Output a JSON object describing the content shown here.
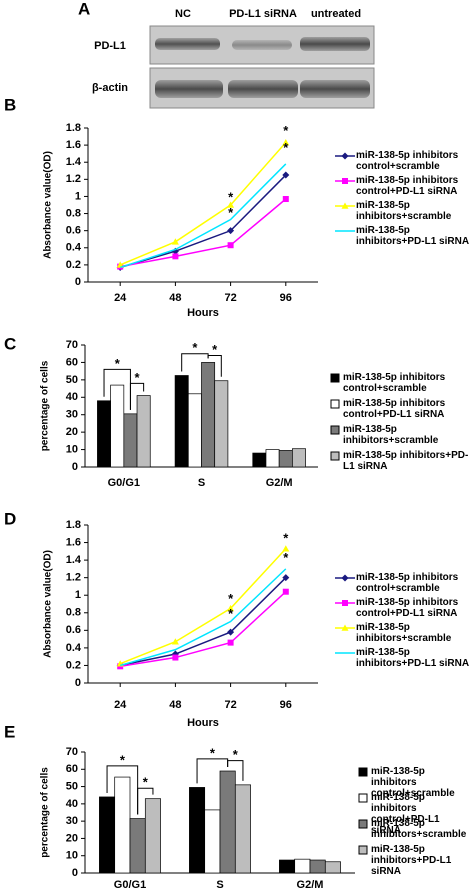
{
  "blot": {
    "panel": "A",
    "lanes": [
      "NC",
      "PD-L1 siRNA",
      "untreated"
    ],
    "rows": [
      "PD-L1",
      "β-actin"
    ]
  },
  "chart_data": [
    {
      "type": "line",
      "panel": "B",
      "xlabel": "Hours",
      "ylabel": "Absorbance value(OD)",
      "x": [
        24,
        48,
        72,
        96
      ],
      "xlim": [
        10,
        110
      ],
      "xticks": [
        24,
        48,
        72,
        96
      ],
      "ylim": [
        0,
        1.8
      ],
      "yticks": [
        0,
        0.2,
        0.4,
        0.6,
        0.8,
        1,
        1.2,
        1.4,
        1.6,
        1.8
      ],
      "series": [
        {
          "name": "miR-138-5p inhibitors control+scramble",
          "color": "#1a1a80",
          "marker": "diamond",
          "values": [
            0.17,
            0.36,
            0.6,
            1.25
          ]
        },
        {
          "name": "miR-138-5p inhibitors control+PD-L1 siRNA",
          "color": "#ff00ff",
          "marker": "square",
          "values": [
            0.18,
            0.3,
            0.43,
            0.97
          ]
        },
        {
          "name": "miR-138-5p inhibitors+scramble",
          "color": "#ffff00",
          "marker": "triangle",
          "values": [
            0.2,
            0.47,
            0.9,
            1.63
          ]
        },
        {
          "name": "miR-138-5p inhibitors+PD-L1 siRNA",
          "color": "#00e5ff",
          "marker": "none",
          "values": [
            0.17,
            0.38,
            0.73,
            1.38
          ]
        }
      ],
      "annotations": [
        {
          "text": "*",
          "x": 96,
          "y": 1.76
        },
        {
          "text": "*",
          "x": 96,
          "y": 1.56
        },
        {
          "text": "*",
          "x": 72,
          "y": 0.98
        },
        {
          "text": "*",
          "x": 72,
          "y": 0.8
        }
      ]
    },
    {
      "type": "bar",
      "panel": "C",
      "ylabel": "percentage of cells",
      "categories": [
        "G0/G1",
        "S",
        "G2/M"
      ],
      "ylim": [
        0,
        70
      ],
      "yticks": [
        0,
        10,
        20,
        30,
        40,
        50,
        60,
        70
      ],
      "series": [
        {
          "name": "miR-138-5p inhibitors control+scramble",
          "color": "#000000",
          "values": [
            38,
            52.5,
            8
          ]
        },
        {
          "name": "miR-138-5p inhibitors control+PD-L1 siRNA",
          "color": "#ffffff",
          "values": [
            47,
            42,
            10
          ]
        },
        {
          "name": "miR-138-5p inhibitors+scramble",
          "color": "#7a7a7a",
          "values": [
            30.5,
            60,
            9.5
          ]
        },
        {
          "name": "miR-138-5p inhibitors+PD-L1 siRNA",
          "color": "#bdbdbd",
          "values": [
            41,
            49.5,
            10.5
          ]
        }
      ],
      "annotations": [
        {
          "text": "*",
          "y": 56,
          "from": [
            0,
            0
          ],
          "to": [
            0,
            2
          ]
        },
        {
          "text": "*",
          "y": 48,
          "from": [
            0,
            2
          ],
          "to": [
            0,
            3
          ]
        },
        {
          "text": "*",
          "y": 65,
          "from": [
            1,
            0
          ],
          "to": [
            1,
            2
          ]
        },
        {
          "text": "*",
          "y": 64,
          "from": [
            1,
            2
          ],
          "to": [
            1,
            3
          ]
        }
      ]
    },
    {
      "type": "line",
      "panel": "D",
      "xlabel": "Hours",
      "ylabel": "Absorbance value(OD)",
      "x": [
        24,
        48,
        72,
        96
      ],
      "xlim": [
        10,
        110
      ],
      "xticks": [
        24,
        48,
        72,
        96
      ],
      "ylim": [
        0,
        1.8
      ],
      "yticks": [
        0,
        0.2,
        0.4,
        0.6,
        0.8,
        1,
        1.2,
        1.4,
        1.6,
        1.8
      ],
      "series": [
        {
          "name": "miR-138-5p inhibitors control+scramble",
          "color": "#1a1a80",
          "marker": "diamond",
          "values": [
            0.2,
            0.33,
            0.58,
            1.2
          ]
        },
        {
          "name": "miR-138-5p inhibitors control+PD-L1 siRNA",
          "color": "#ff00ff",
          "marker": "square",
          "values": [
            0.19,
            0.29,
            0.46,
            1.04
          ]
        },
        {
          "name": "miR-138-5p inhibitors+scramble",
          "color": "#ffff00",
          "marker": "triangle",
          "values": [
            0.22,
            0.47,
            0.85,
            1.53
          ]
        },
        {
          "name": "miR-138-5p inhibitors+PD-L1 siRNA",
          "color": "#00e5ff",
          "marker": "none",
          "values": [
            0.2,
            0.38,
            0.7,
            1.3
          ]
        }
      ],
      "annotations": [
        {
          "text": "*",
          "x": 96,
          "y": 1.64
        },
        {
          "text": "*",
          "x": 96,
          "y": 1.42
        },
        {
          "text": "*",
          "x": 72,
          "y": 0.95
        },
        {
          "text": "*",
          "x": 72,
          "y": 0.78
        }
      ]
    },
    {
      "type": "bar",
      "panel": "E",
      "ylabel": "percentage of cells",
      "categories": [
        "G0/G1",
        "S",
        "G2/M"
      ],
      "ylim": [
        0,
        70
      ],
      "yticks": [
        0,
        10,
        20,
        30,
        40,
        50,
        60,
        70
      ],
      "series": [
        {
          "name": "miR-138-5p inhibitors control+scramble",
          "color": "#000000",
          "values": [
            44,
            49.5,
            7.5
          ]
        },
        {
          "name": "miR-138-5p inhibitors control+PD-L1 siRNA",
          "color": "#ffffff",
          "values": [
            55.5,
            36.5,
            8
          ]
        },
        {
          "name": "miR-138-5p inhibitors+scramble",
          "color": "#7a7a7a",
          "values": [
            31.5,
            59,
            7.5
          ]
        },
        {
          "name": "miR-138-5p inhibitors+PD-L1 siRNA",
          "color": "#bdbdbd",
          "values": [
            43,
            51,
            6.5
          ]
        }
      ],
      "annotations": [
        {
          "text": "*",
          "y": 62,
          "from": [
            0,
            0
          ],
          "to": [
            0,
            2
          ]
        },
        {
          "text": "*",
          "y": 49,
          "from": [
            0,
            2
          ],
          "to": [
            0,
            3
          ]
        },
        {
          "text": "*",
          "y": 66,
          "from": [
            1,
            0
          ],
          "to": [
            1,
            2
          ]
        },
        {
          "text": "*",
          "y": 65,
          "from": [
            1,
            2
          ],
          "to": [
            1,
            3
          ]
        }
      ]
    }
  ]
}
